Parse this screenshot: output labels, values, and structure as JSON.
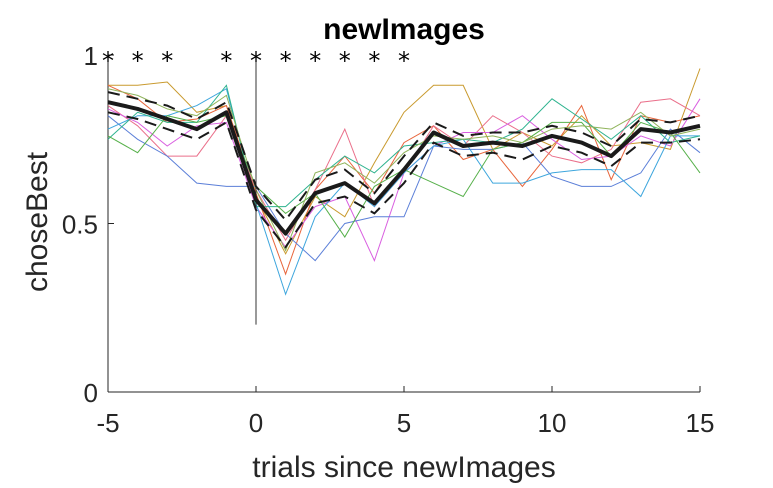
{
  "chart_data": {
    "type": "line",
    "title": "newImages",
    "xlabel": "trials since newImages",
    "ylabel": "choseBest",
    "xlim": [
      -5,
      15
    ],
    "ylim": [
      0,
      1
    ],
    "xticks": [
      "-5",
      "0",
      "5",
      "10",
      "15"
    ],
    "yticks": [
      "0",
      "0.5",
      "1"
    ],
    "grid": false,
    "vline": {
      "x": 0,
      "y_range": [
        0.2,
        1
      ]
    },
    "significance_marker": "*",
    "significant_x": [
      -5,
      -4,
      -3,
      -1,
      0,
      1,
      2,
      3,
      4,
      5
    ],
    "x": [
      -5,
      -4,
      -3,
      -2,
      -1,
      0,
      1,
      2,
      3,
      4,
      5,
      6,
      7,
      8,
      9,
      10,
      11,
      12,
      13,
      14,
      15
    ],
    "series": [
      {
        "color": "#c99a2e",
        "values": [
          0.91,
          0.91,
          0.92,
          0.83,
          0.85,
          0.58,
          0.41,
          0.58,
          0.52,
          0.68,
          0.83,
          0.91,
          0.91,
          0.72,
          0.77,
          0.73,
          0.82,
          0.73,
          0.74,
          0.72,
          0.96
        ]
      },
      {
        "color": "#e8663c",
        "values": [
          0.91,
          0.87,
          0.8,
          0.81,
          0.85,
          0.59,
          0.35,
          0.6,
          0.7,
          0.59,
          0.74,
          0.79,
          0.69,
          0.72,
          0.61,
          0.72,
          0.85,
          0.63,
          0.82,
          0.8,
          0.82
        ]
      },
      {
        "color": "#ea6f8a",
        "values": [
          0.85,
          0.79,
          0.7,
          0.7,
          0.82,
          0.6,
          0.45,
          0.6,
          0.78,
          0.55,
          0.65,
          0.79,
          0.73,
          0.82,
          0.77,
          0.7,
          0.68,
          0.72,
          0.86,
          0.87,
          0.82
        ]
      },
      {
        "color": "#d95fe0",
        "values": [
          0.84,
          0.8,
          0.73,
          0.79,
          0.8,
          0.55,
          0.43,
          0.55,
          0.58,
          0.39,
          0.65,
          0.73,
          0.77,
          0.77,
          0.82,
          0.75,
          0.69,
          0.7,
          0.76,
          0.73,
          0.87
        ]
      },
      {
        "color": "#5b7fd8",
        "values": [
          0.82,
          0.75,
          0.7,
          0.62,
          0.61,
          0.61,
          0.47,
          0.39,
          0.5,
          0.52,
          0.52,
          0.73,
          0.72,
          0.72,
          0.74,
          0.64,
          0.61,
          0.61,
          0.65,
          0.78,
          0.71
        ]
      },
      {
        "color": "#3ea6dd",
        "values": [
          0.78,
          0.82,
          0.82,
          0.85,
          0.9,
          0.56,
          0.29,
          0.52,
          0.62,
          0.55,
          0.65,
          0.73,
          0.75,
          0.62,
          0.62,
          0.65,
          0.66,
          0.66,
          0.58,
          0.76,
          0.76
        ]
      },
      {
        "color": "#2eb38f",
        "values": [
          0.75,
          0.83,
          0.8,
          0.8,
          0.91,
          0.55,
          0.55,
          0.63,
          0.7,
          0.65,
          0.73,
          0.74,
          0.75,
          0.74,
          0.78,
          0.87,
          0.81,
          0.75,
          0.82,
          0.74,
          0.76
        ]
      },
      {
        "color": "#56b04a",
        "values": [
          0.76,
          0.71,
          0.82,
          0.8,
          0.82,
          0.61,
          0.53,
          0.59,
          0.46,
          0.61,
          0.66,
          0.62,
          0.58,
          0.72,
          0.74,
          0.8,
          0.8,
          0.7,
          0.8,
          0.77,
          0.65
        ]
      },
      {
        "color": "#8fb35a",
        "values": [
          0.9,
          0.88,
          0.84,
          0.82,
          0.88,
          0.6,
          0.42,
          0.65,
          0.68,
          0.62,
          0.71,
          0.76,
          0.75,
          0.76,
          0.74,
          0.78,
          0.79,
          0.78,
          0.83,
          0.76,
          0.78
        ]
      }
    ],
    "mean": {
      "color": "#1a1a1a",
      "values": [
        0.86,
        0.84,
        0.81,
        0.78,
        0.83,
        0.57,
        0.47,
        0.59,
        0.62,
        0.56,
        0.66,
        0.77,
        0.73,
        0.74,
        0.73,
        0.76,
        0.74,
        0.7,
        0.78,
        0.77,
        0.79
      ]
    },
    "sem_upper": {
      "color": "#1a1a1a",
      "values": [
        0.89,
        0.87,
        0.85,
        0.81,
        0.86,
        0.61,
        0.51,
        0.63,
        0.66,
        0.59,
        0.7,
        0.8,
        0.76,
        0.77,
        0.77,
        0.79,
        0.77,
        0.73,
        0.81,
        0.8,
        0.82
      ]
    },
    "sem_lower": {
      "color": "#1a1a1a",
      "values": [
        0.83,
        0.81,
        0.78,
        0.75,
        0.8,
        0.54,
        0.43,
        0.56,
        0.58,
        0.53,
        0.62,
        0.74,
        0.7,
        0.71,
        0.69,
        0.73,
        0.71,
        0.67,
        0.74,
        0.74,
        0.75
      ]
    }
  }
}
